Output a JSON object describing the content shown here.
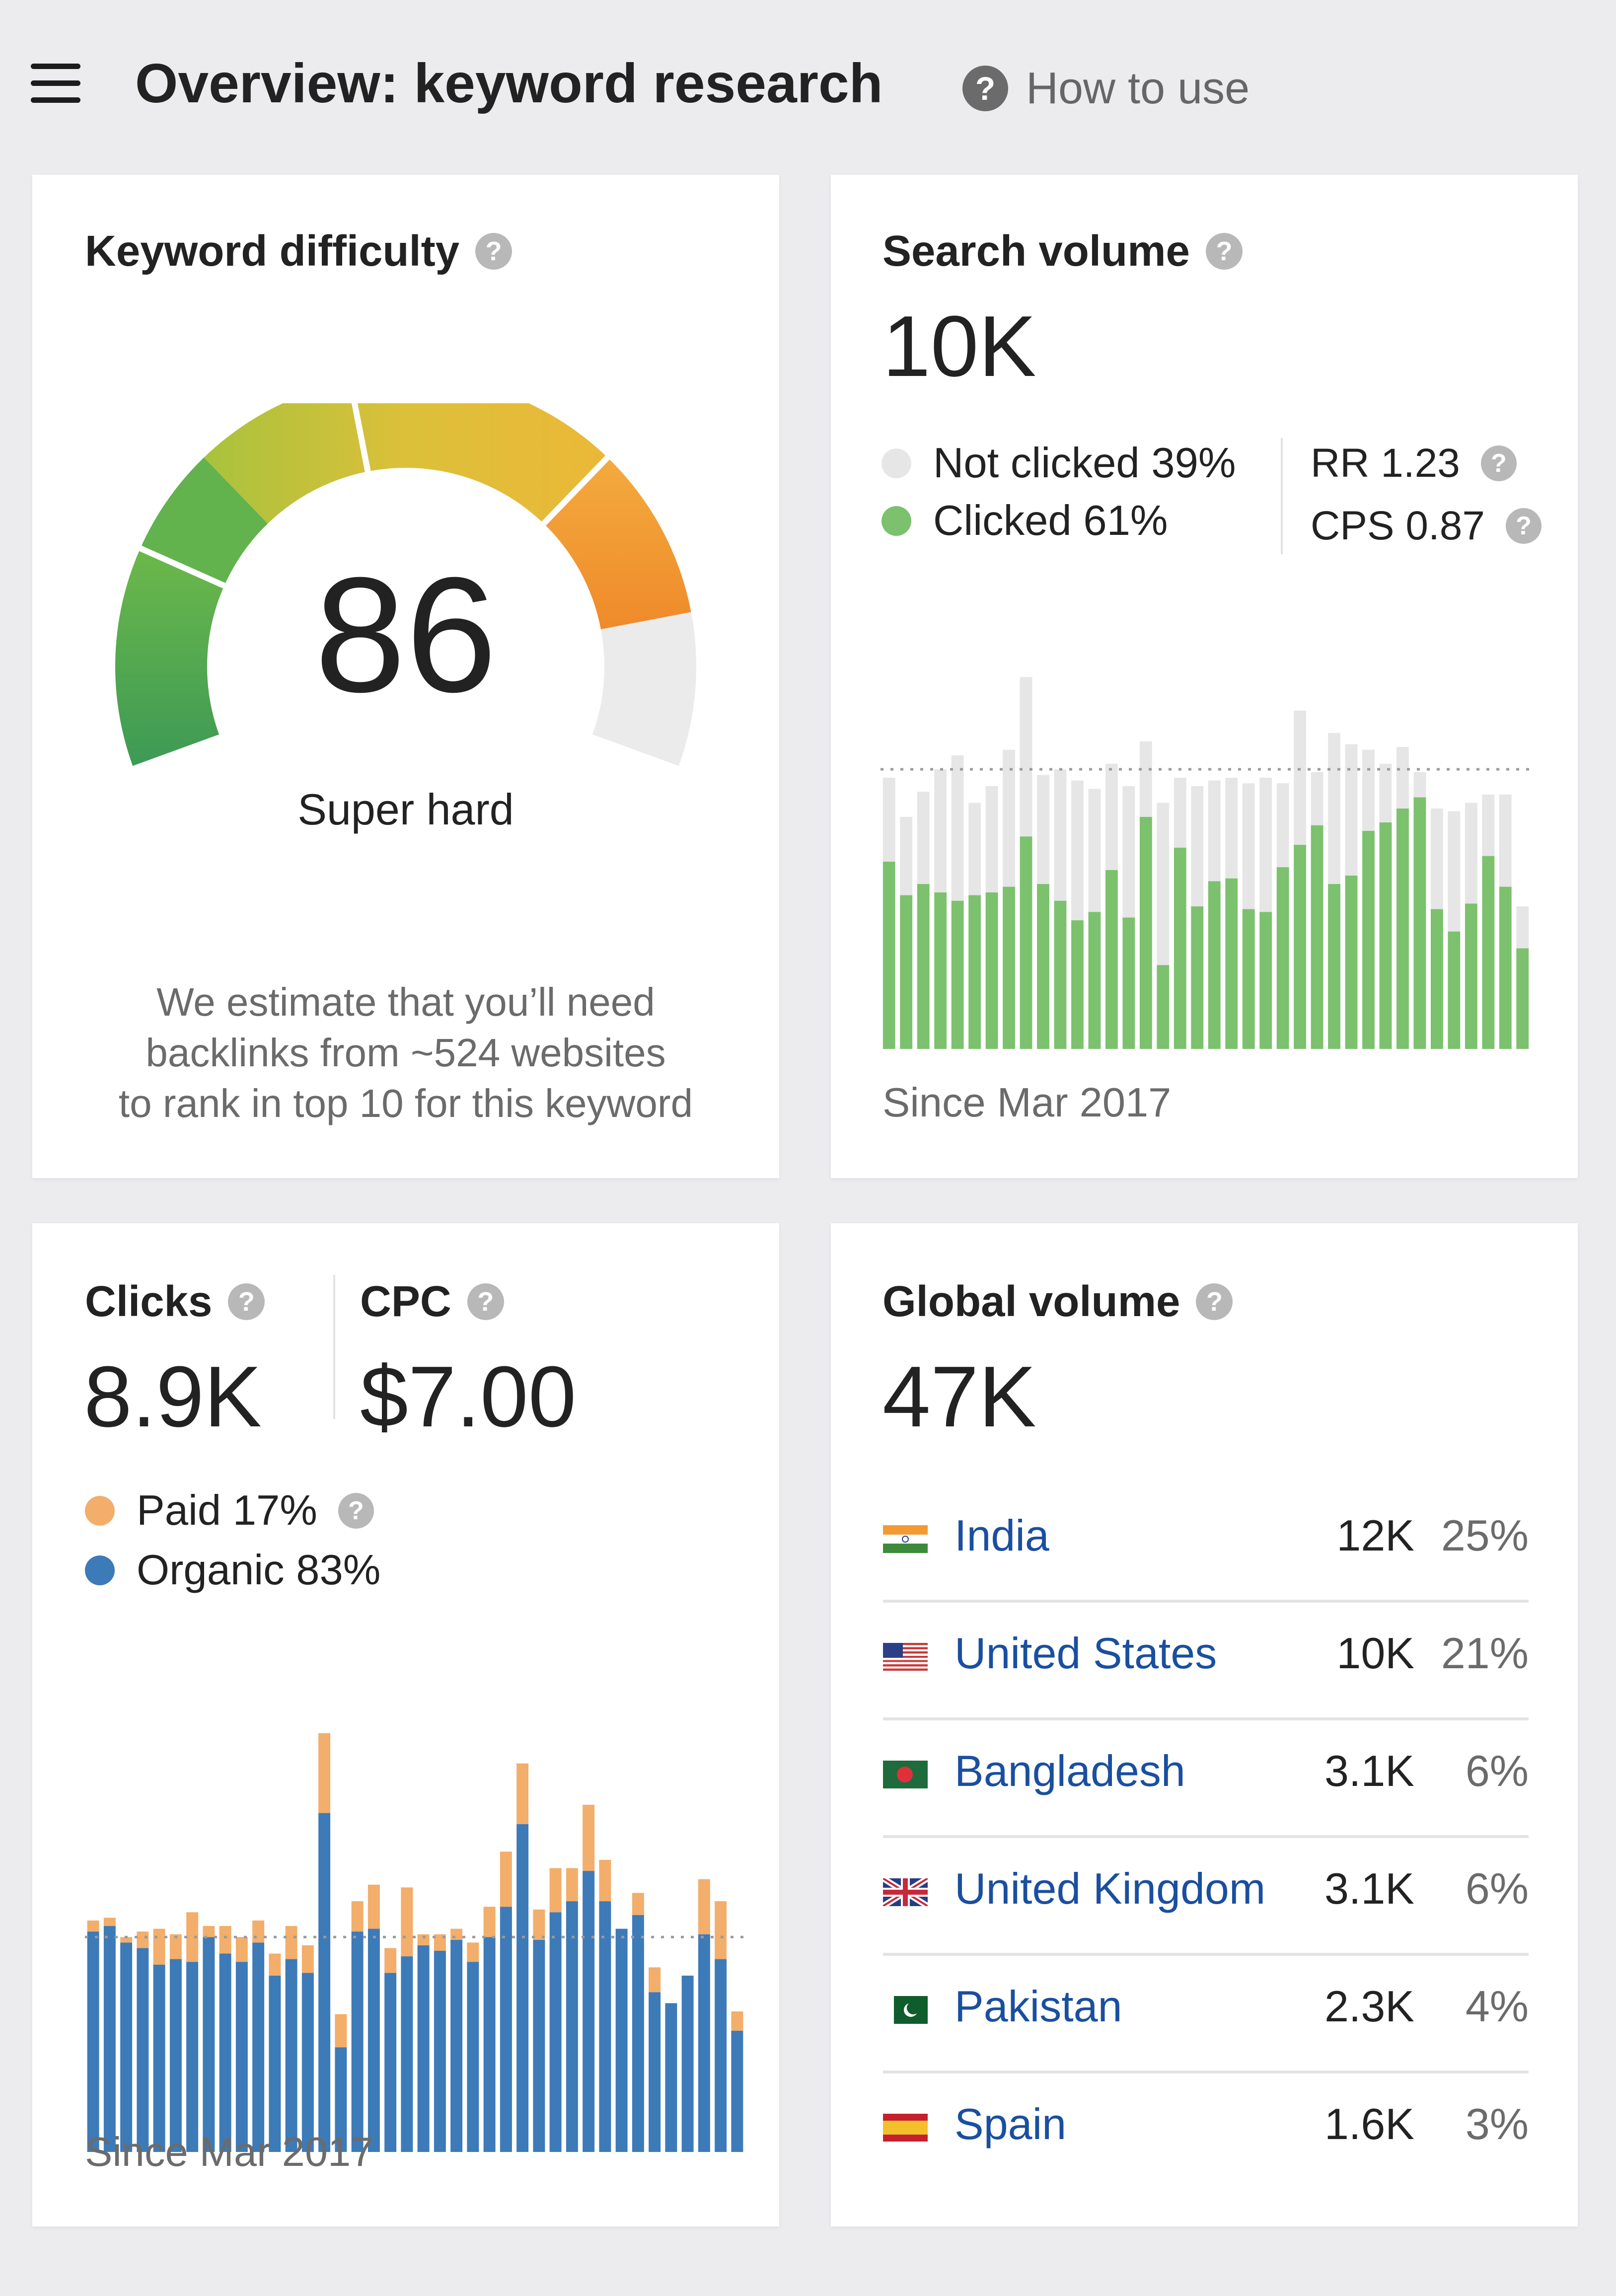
{
  "header": {
    "title": "Overview: keyword research",
    "how_to_use": "How to use"
  },
  "keyword_difficulty": {
    "title": "Keyword difficulty",
    "score": "86",
    "label": "Super hard",
    "estimate_lines": [
      "We estimate that you’ll need",
      "backlinks from ~524 websites",
      "to rank in top 10 for this keyword"
    ],
    "gauge_value": 86,
    "gauge_max": 100
  },
  "search_volume": {
    "title": "Search volume",
    "value": "10K",
    "not_clicked": "Not clicked 39%",
    "clicked": "Clicked 61%",
    "rr": "RR 1.23",
    "cps": "CPS 0.87",
    "since": "Since Mar 2017",
    "colors": {
      "clicked": "#7cc16d",
      "not_clicked": "#e6e6e6"
    }
  },
  "clicks": {
    "title": "Clicks",
    "value": "8.9K",
    "cpc_title": "CPC",
    "cpc_value": "$7.00",
    "paid": "Paid 17%",
    "organic": "Organic 83%",
    "since": "Since Mar 2017",
    "colors": {
      "paid": "#f2ae6a",
      "organic": "#3d7ab8"
    }
  },
  "global_volume": {
    "title": "Global volume",
    "value": "47K",
    "countries": [
      {
        "name": "India",
        "volume": "12K",
        "share": "25%",
        "flag": "india-flag-icon"
      },
      {
        "name": "United States",
        "volume": "10K",
        "share": "21%",
        "flag": "us-flag-icon"
      },
      {
        "name": "Bangladesh",
        "volume": "3.1K",
        "share": "6%",
        "flag": "bangladesh-flag-icon"
      },
      {
        "name": "United Kingdom",
        "volume": "3.1K",
        "share": "6%",
        "flag": "uk-flag-icon"
      },
      {
        "name": "Pakistan",
        "volume": "2.3K",
        "share": "4%",
        "flag": "pakistan-flag-icon"
      },
      {
        "name": "Spain",
        "volume": "1.6K",
        "share": "3%",
        "flag": "spain-flag-icon"
      }
    ]
  },
  "chart_data": [
    {
      "type": "bar",
      "stacked": true,
      "series": [
        {
          "name": "Clicked",
          "values": [
            6700,
            5500,
            5900,
            5600,
            5300,
            5500,
            5600,
            5800,
            7600,
            5900,
            5300,
            4600,
            4900,
            6400,
            4700,
            8300,
            3000,
            7200,
            5100,
            6000,
            6100,
            5000,
            4900,
            6500,
            7300,
            8000,
            5900,
            6200,
            7800,
            8100,
            8600,
            9000,
            5000,
            4200,
            5200,
            6900,
            5800,
            3600
          ]
        },
        {
          "name": "Not clicked",
          "values": [
            3000,
            2800,
            3300,
            4400,
            5200,
            3300,
            3800,
            4900,
            5700,
            3900,
            4700,
            5000,
            4400,
            3800,
            4700,
            2700,
            5800,
            2500,
            4300,
            3600,
            3600,
            4500,
            4800,
            3000,
            4800,
            1900,
            5400,
            4700,
            2900,
            2100,
            2200,
            900,
            3600,
            4300,
            3600,
            2200,
            3300,
            1500
          ]
        }
      ],
      "reference_line": 10000,
      "caption": "Since Mar 2017"
    },
    {
      "type": "bar",
      "stacked": true,
      "series": [
        {
          "name": "Organic",
          "values": [
            8000,
            8200,
            7600,
            7400,
            6800,
            7000,
            6900,
            7800,
            7200,
            6900,
            7600,
            6400,
            7000,
            6500,
            12300,
            3800,
            8000,
            8100,
            6500,
            7100,
            7500,
            7300,
            7700,
            6900,
            7800,
            8900,
            11900,
            7700,
            8700,
            9100,
            10200,
            9100,
            8100,
            8600,
            5800,
            5400,
            6400,
            7900,
            7000,
            4400
          ]
        },
        {
          "name": "Paid",
          "values": [
            400,
            300,
            200,
            600,
            1300,
            900,
            1800,
            400,
            1000,
            900,
            800,
            800,
            1200,
            1000,
            2900,
            1200,
            1100,
            1600,
            900,
            2500,
            400,
            600,
            400,
            700,
            1100,
            2000,
            2200,
            1100,
            1600,
            1200,
            2400,
            1500,
            0,
            800,
            900,
            0,
            0,
            2000,
            2100,
            700
          ]
        }
      ],
      "reference_line": 7800,
      "caption": "Since Mar 2017"
    }
  ]
}
